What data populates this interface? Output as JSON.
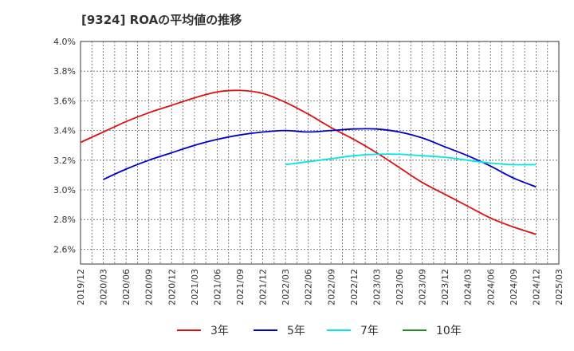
{
  "chart_data": {
    "type": "line",
    "title": "[9324]  ROAの平均値の推移",
    "xlabel": "",
    "ylabel": "",
    "x_ticks": [
      "2019/12",
      "2020/03",
      "2020/06",
      "2020/09",
      "2020/12",
      "2021/03",
      "2021/06",
      "2021/09",
      "2021/12",
      "2022/03",
      "2022/06",
      "2022/09",
      "2022/12",
      "2023/03",
      "2023/06",
      "2023/09",
      "2023/12",
      "2024/03",
      "2024/06",
      "2024/09",
      "2024/12",
      "2025/03"
    ],
    "y_ticks": [
      "2.6%",
      "2.8%",
      "3.0%",
      "3.2%",
      "3.4%",
      "3.6%",
      "3.8%",
      "4.0%"
    ],
    "ylim": [
      2.5,
      4.0
    ],
    "grid": true,
    "legend_position": "bottom",
    "series": [
      {
        "name": "3年",
        "color": "#dd1111",
        "x": [
          "2019/12",
          "2020/03",
          "2020/06",
          "2020/09",
          "2020/12",
          "2021/03",
          "2021/06",
          "2021/09",
          "2021/12",
          "2022/03",
          "2022/06",
          "2022/09",
          "2022/12",
          "2023/03",
          "2023/06",
          "2023/09",
          "2023/12",
          "2024/03",
          "2024/06",
          "2024/09",
          "2024/12"
        ],
        "values": [
          3.32,
          3.39,
          3.46,
          3.52,
          3.57,
          3.62,
          3.66,
          3.67,
          3.65,
          3.59,
          3.51,
          3.42,
          3.34,
          3.25,
          3.15,
          3.05,
          2.97,
          2.89,
          2.81,
          2.75,
          2.7
        ]
      },
      {
        "name": "5年",
        "color": "#0000cc",
        "x": [
          "2020/03",
          "2020/06",
          "2020/09",
          "2020/12",
          "2021/03",
          "2021/06",
          "2021/09",
          "2021/12",
          "2022/03",
          "2022/06",
          "2022/09",
          "2022/12",
          "2023/03",
          "2023/06",
          "2023/09",
          "2023/12",
          "2024/03",
          "2024/06",
          "2024/09",
          "2024/12"
        ],
        "values": [
          3.07,
          3.14,
          3.2,
          3.25,
          3.3,
          3.34,
          3.37,
          3.39,
          3.4,
          3.39,
          3.4,
          3.41,
          3.41,
          3.39,
          3.35,
          3.29,
          3.23,
          3.16,
          3.08,
          3.02
        ]
      },
      {
        "name": "7年",
        "color": "#00e5e5",
        "x": [
          "2022/03",
          "2022/06",
          "2022/09",
          "2022/12",
          "2023/03",
          "2023/06",
          "2023/09",
          "2023/12",
          "2024/03",
          "2024/06",
          "2024/09",
          "2024/12"
        ],
        "values": [
          3.17,
          3.19,
          3.21,
          3.23,
          3.24,
          3.24,
          3.23,
          3.22,
          3.2,
          3.18,
          3.17,
          3.17
        ]
      },
      {
        "name": "10年",
        "color": "#228b22",
        "x": [],
        "values": []
      }
    ]
  }
}
